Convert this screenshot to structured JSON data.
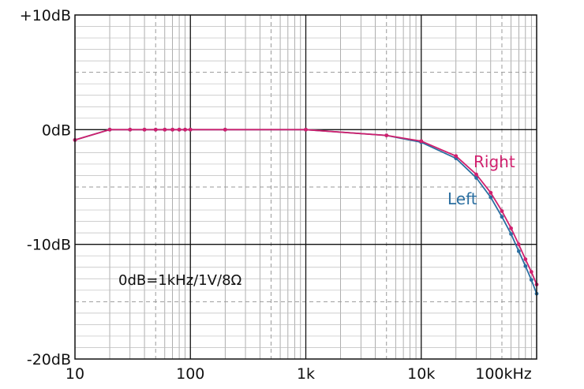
{
  "chart_data": {
    "type": "line",
    "x_scale": "log",
    "xlim": [
      10,
      100000
    ],
    "ylim": [
      -20,
      10
    ],
    "grid": true,
    "x_tick_labels": [
      {
        "value": 10,
        "label": "10"
      },
      {
        "value": 100,
        "label": "100"
      },
      {
        "value": 1000,
        "label": "1k"
      },
      {
        "value": 10000,
        "label": "10k"
      },
      {
        "value": 100000,
        "label": "100kHz"
      }
    ],
    "y_tick_labels": [
      {
        "value": 10,
        "label": "+10dB"
      },
      {
        "value": 0,
        "label": "0dB"
      },
      {
        "value": -10,
        "label": "-10dB"
      },
      {
        "value": -20,
        "label": "-20dB"
      }
    ],
    "annotation": "0dB=1kHz/1V/8Ω",
    "series": [
      {
        "name": "Right",
        "color": "#d0206e",
        "x": [
          10,
          20,
          30,
          40,
          50,
          60,
          70,
          80,
          90,
          100,
          200,
          1000,
          5000,
          10000,
          20000,
          30000,
          40000,
          50000,
          60000,
          70000,
          80000,
          90000,
          100000
        ],
        "y": [
          -0.9,
          0,
          0,
          0,
          0,
          0,
          0,
          0,
          0,
          0,
          0,
          0,
          -0.5,
          -1.0,
          -2.3,
          -3.9,
          -5.5,
          -7.1,
          -8.6,
          -10.0,
          -11.3,
          -12.4,
          -13.5
        ]
      },
      {
        "name": "Left",
        "color": "#2a6ea0",
        "x": [
          10,
          20,
          30,
          40,
          50,
          60,
          70,
          80,
          90,
          100,
          200,
          1000,
          5000,
          10000,
          20000,
          30000,
          40000,
          50000,
          60000,
          70000,
          80000,
          90000,
          100000
        ],
        "y": [
          -0.9,
          0,
          0,
          0,
          0,
          0,
          0,
          0,
          0,
          0,
          0,
          0,
          -0.5,
          -1.1,
          -2.5,
          -4.2,
          -5.9,
          -7.6,
          -9.1,
          -10.6,
          -11.9,
          -13.1,
          -14.3
        ]
      }
    ],
    "series_labels": [
      "Right",
      "Left"
    ]
  }
}
